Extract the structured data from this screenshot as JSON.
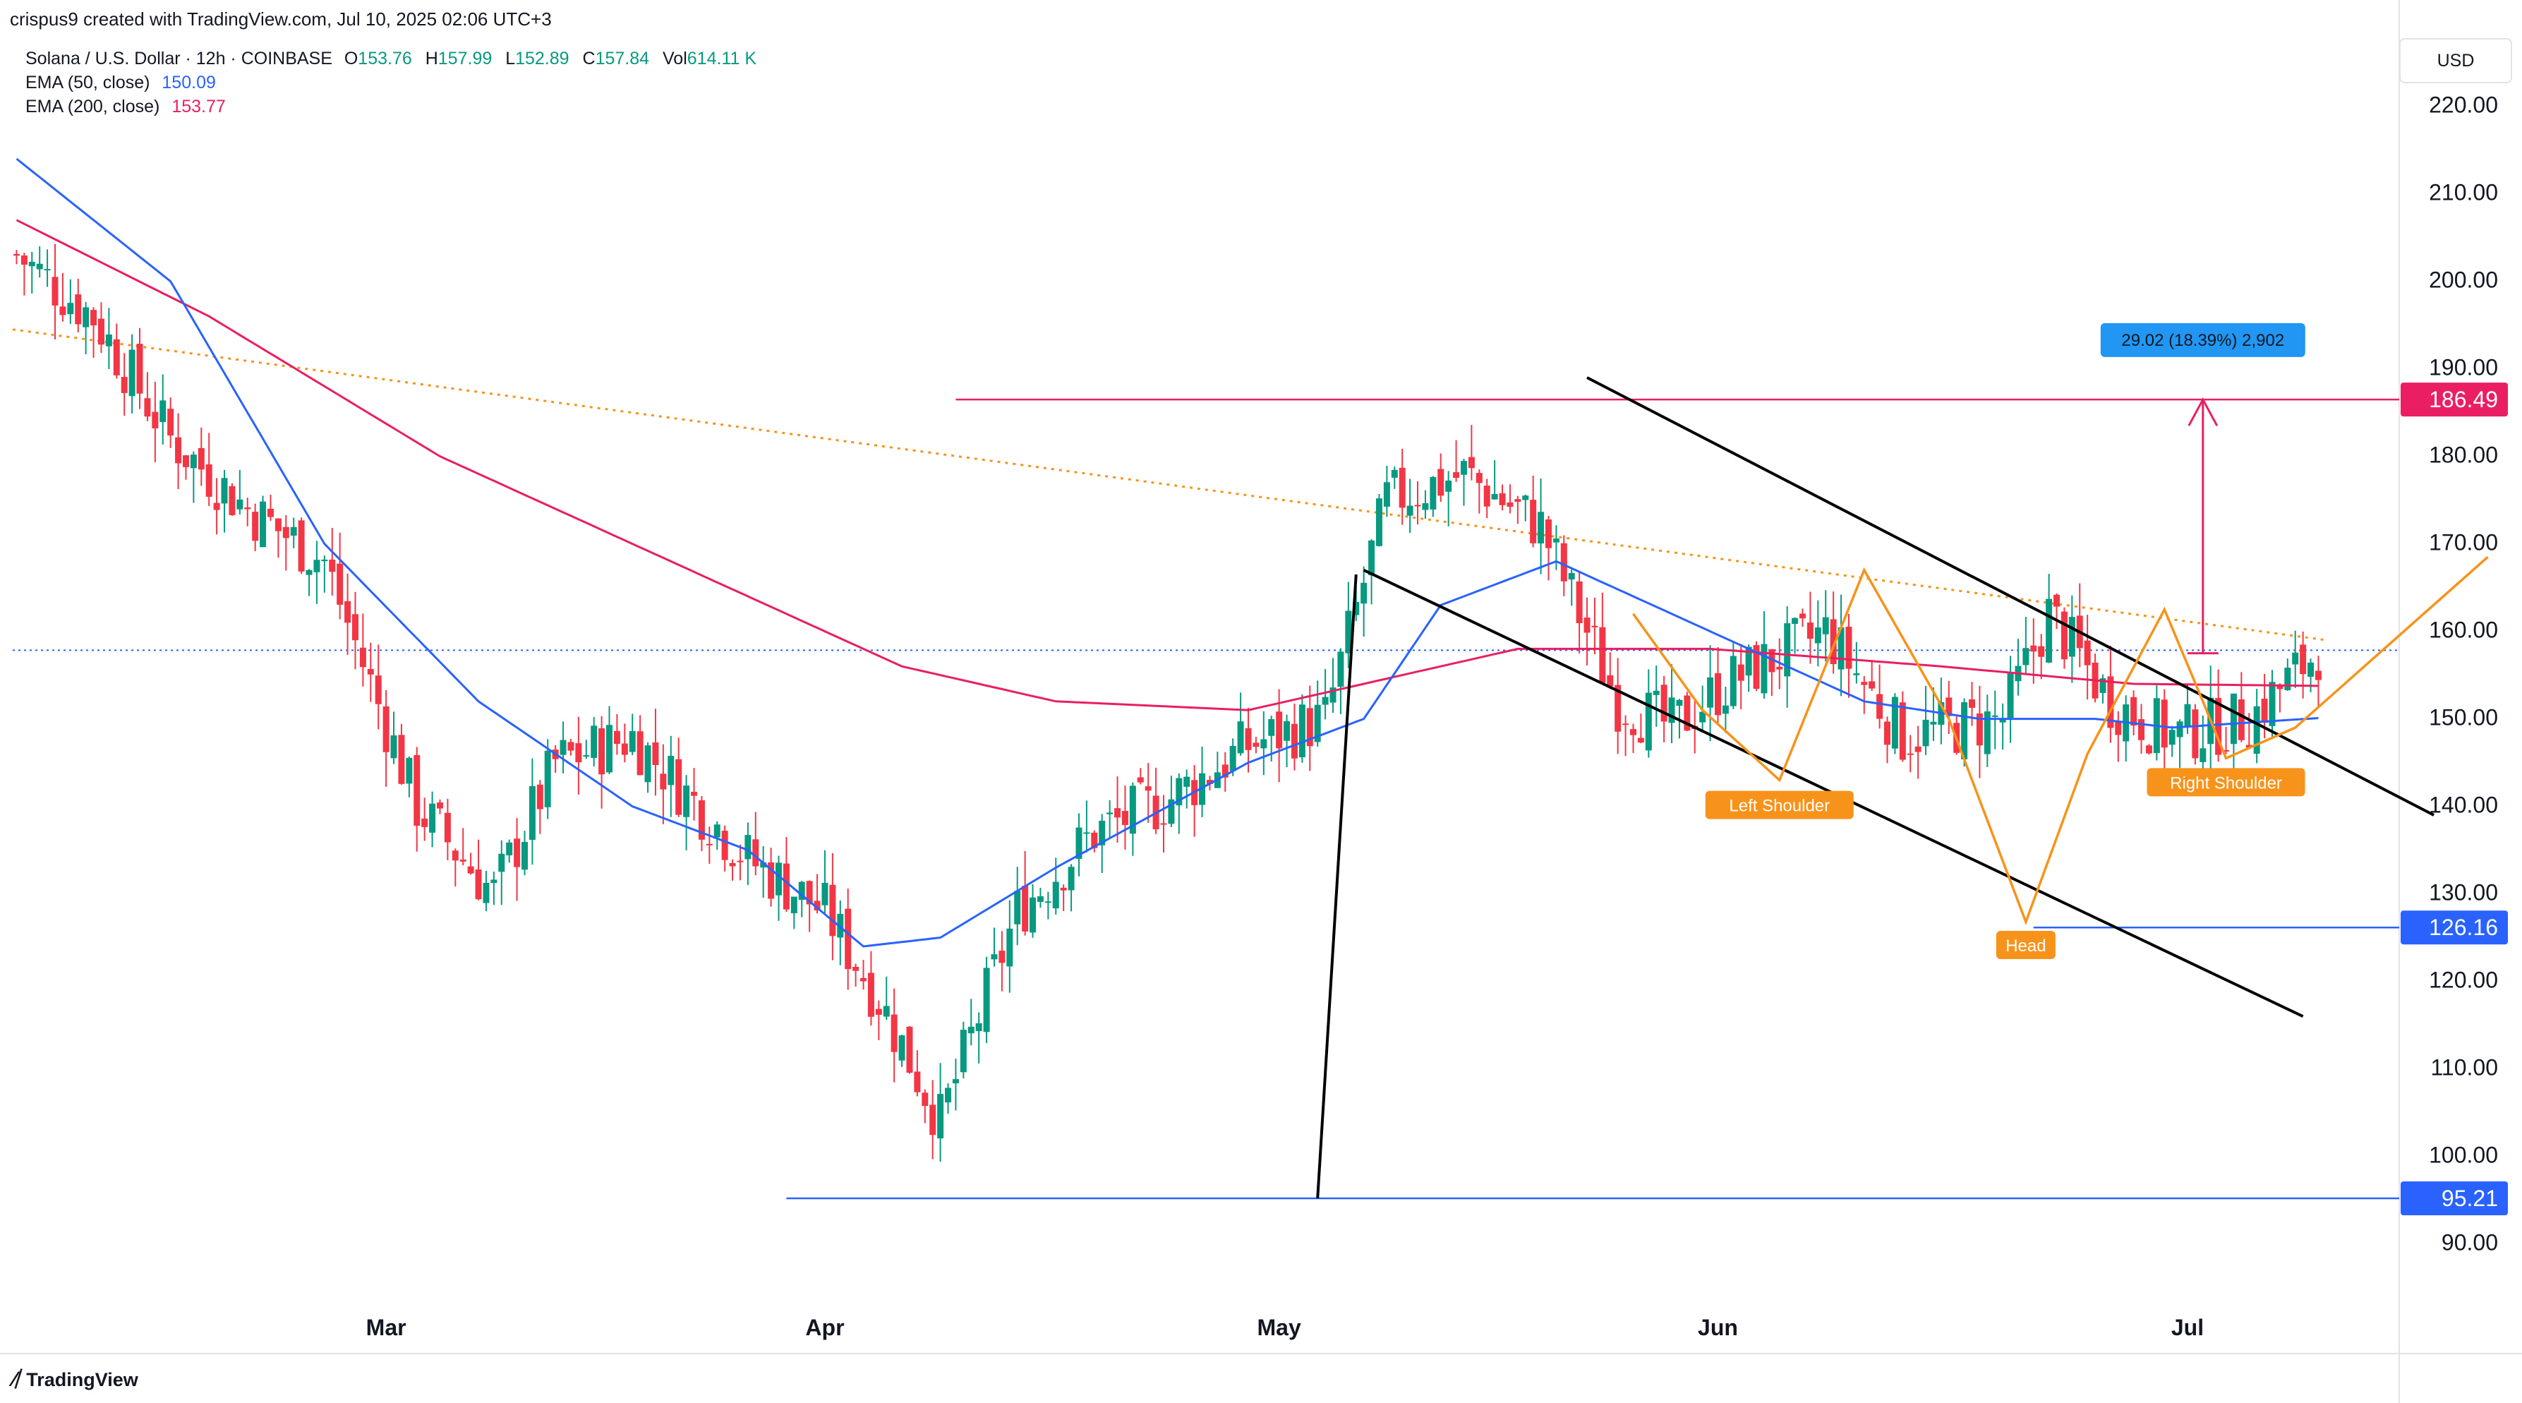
{
  "header": {
    "text": "crispus9 created with TradingView.com, Jul 10, 2025 02:06 UTC+3"
  },
  "legend": {
    "symbol": "Solana / U.S. Dollar · 12h · COINBASE",
    "ohlc": [
      {
        "key": "O",
        "value": "153.76"
      },
      {
        "key": "H",
        "value": "157.99"
      },
      {
        "key": "L",
        "value": "152.89"
      },
      {
        "key": "C",
        "value": "157.84"
      },
      {
        "key": "Vol",
        "value": "614.11 K"
      }
    ],
    "ema50": {
      "label": "EMA (50, close)",
      "value": "150.09",
      "color": "#2962ff"
    },
    "ema200": {
      "label": "EMA (200, close)",
      "value": "153.77",
      "color": "#e91e63"
    }
  },
  "currency": "USD",
  "footer": {
    "brand": "TradingView"
  },
  "colors": {
    "up": "#089981",
    "down": "#f23645",
    "pattern": "#f7931a",
    "channel": "#000000",
    "level": "#2962ff",
    "target": "#e91e63"
  },
  "chart_data": {
    "type": "candlestick",
    "title": "Solana / U.S. Dollar · 12h · COINBASE",
    "y_ticks": [
      "220.00",
      "210.00",
      "200.00",
      "190.00",
      "180.00",
      "170.00",
      "160.00",
      "150.00",
      "140.00",
      "130.00",
      "120.00",
      "110.00",
      "100.00",
      "90.00"
    ],
    "y_tick_values": [
      220,
      210,
      200,
      190,
      180,
      170,
      160,
      150,
      140,
      130,
      120,
      110,
      100,
      90
    ],
    "ylim": [
      84,
      224
    ],
    "x_ticks": [
      "Mar",
      "Apr",
      "May",
      "Jun",
      "Jul"
    ],
    "x_tick_index": [
      48,
      105,
      164,
      221,
      282
    ],
    "bars": 310,
    "close_series": [
      [
        0,
        203
      ],
      [
        10,
        196
      ],
      [
        20,
        182
      ],
      [
        30,
        174
      ],
      [
        40,
        168
      ],
      [
        52,
        140
      ],
      [
        62,
        130
      ],
      [
        70,
        145
      ],
      [
        80,
        148
      ],
      [
        95,
        134
      ],
      [
        105,
        128
      ],
      [
        112,
        118
      ],
      [
        120,
        104
      ],
      [
        130,
        128
      ],
      [
        140,
        137
      ],
      [
        150,
        141
      ],
      [
        160,
        147
      ],
      [
        170,
        150
      ],
      [
        178,
        175
      ],
      [
        188,
        178
      ],
      [
        198,
        172
      ],
      [
        208,
        152
      ],
      [
        215,
        149
      ],
      [
        222,
        154
      ],
      [
        235,
        160
      ],
      [
        245,
        148
      ],
      [
        258,
        150
      ],
      [
        264,
        162
      ],
      [
        272,
        152
      ],
      [
        280,
        148
      ],
      [
        290,
        150
      ],
      [
        299,
        157.84
      ]
    ],
    "ema50": [
      [
        0,
        214
      ],
      [
        20,
        200
      ],
      [
        40,
        170
      ],
      [
        60,
        152
      ],
      [
        80,
        140
      ],
      [
        95,
        135
      ],
      [
        110,
        124
      ],
      [
        120,
        125
      ],
      [
        135,
        133
      ],
      [
        160,
        145
      ],
      [
        175,
        150
      ],
      [
        185,
        163
      ],
      [
        200,
        168
      ],
      [
        210,
        164
      ],
      [
        225,
        158
      ],
      [
        240,
        152
      ],
      [
        255,
        150
      ],
      [
        270,
        150
      ],
      [
        280,
        149
      ],
      [
        299,
        150.09
      ]
    ],
    "ema200": [
      [
        0,
        207
      ],
      [
        25,
        196
      ],
      [
        55,
        180
      ],
      [
        90,
        166
      ],
      [
        115,
        156
      ],
      [
        135,
        152
      ],
      [
        160,
        151
      ],
      [
        175,
        154
      ],
      [
        195,
        158
      ],
      [
        220,
        158
      ],
      [
        250,
        156
      ],
      [
        275,
        154
      ],
      [
        299,
        153.77
      ]
    ],
    "price_labels": [
      {
        "text": "186.49",
        "value": 186.49,
        "color": "#e91e63"
      },
      {
        "text": "126.16",
        "value": 126.16,
        "color": "#2962ff"
      },
      {
        "text": "95.21",
        "value": 95.21,
        "color": "#2962ff"
      }
    ],
    "current_price": 157.84,
    "measure_label": "29.02 (18.39%) 2,902",
    "pattern_labels": [
      "Left Shoulder",
      "Head",
      "Right Shoulder"
    ]
  }
}
